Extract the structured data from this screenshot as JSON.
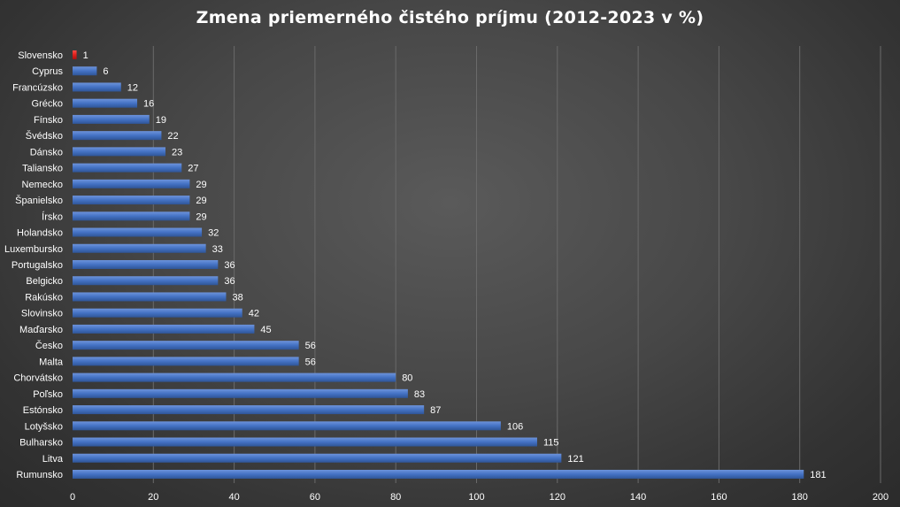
{
  "chart_data": {
    "type": "bar",
    "orientation": "horizontal",
    "title": "Zmena priemerného čistého príjmu (2012-2023 v %)",
    "categories": [
      "Slovensko",
      "Cyprus",
      "Francúzsko",
      "Grécko",
      "Fínsko",
      "Švédsko",
      "Dánsko",
      "Taliansko",
      "Nemecko",
      "Španielsko",
      "Írsko",
      "Holandsko",
      "Luxembursko",
      "Portugalsko",
      "Belgicko",
      "Rakúsko",
      "Slovinsko",
      "Maďarsko",
      "Česko",
      "Malta",
      "Chorvátsko",
      "Poľsko",
      "Estónsko",
      "Lotyšsko",
      "Bulharsko",
      "Litva",
      "Rumunsko"
    ],
    "values": [
      1,
      6,
      12,
      16,
      19,
      22,
      23,
      27,
      29,
      29,
      29,
      32,
      33,
      36,
      36,
      38,
      42,
      45,
      56,
      56,
      80,
      83,
      87,
      106,
      115,
      121,
      181
    ],
    "xlim": [
      0,
      200
    ],
    "xticks": [
      0,
      20,
      40,
      60,
      80,
      100,
      120,
      140,
      160,
      180,
      200
    ],
    "grid": true,
    "data_labels": true,
    "legend": "none",
    "colors": {
      "bar": "#4472c4",
      "highlight": "#e0201c",
      "highlight_category": "Slovensko",
      "gridline": "#6a6a6a",
      "text": "#ffffff"
    }
  }
}
